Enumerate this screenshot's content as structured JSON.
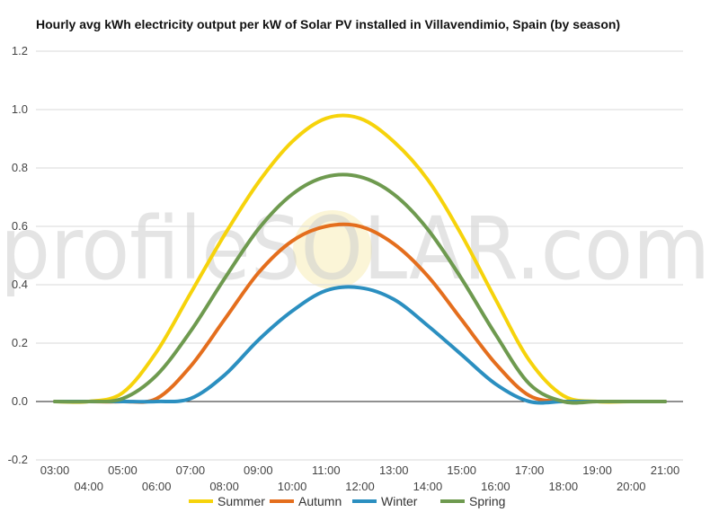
{
  "chart_data": {
    "type": "line",
    "title": "Hourly avg kWh electricity output per kW of Solar PV installed in Villavendimio, Spain (by season)",
    "xlabel": "",
    "ylabel": "",
    "x": [
      "03:00",
      "04:00",
      "05:00",
      "06:00",
      "07:00",
      "08:00",
      "09:00",
      "10:00",
      "11:00",
      "12:00",
      "13:00",
      "14:00",
      "15:00",
      "16:00",
      "17:00",
      "18:00",
      "19:00",
      "20:00",
      "21:00"
    ],
    "ylim": [
      -0.2,
      1.2
    ],
    "yticks": [
      "1.2",
      "1.0",
      "0.8",
      "0.6",
      "0.4",
      "0.2",
      "0.0",
      "-0.2"
    ],
    "grid": true,
    "legend": "bottom",
    "watermark": "profileSOLAR.com",
    "series": [
      {
        "name": "Summer",
        "color": "#f6d30b",
        "values": [
          0.0,
          0.0,
          0.03,
          0.17,
          0.37,
          0.57,
          0.75,
          0.89,
          0.97,
          0.97,
          0.89,
          0.76,
          0.57,
          0.35,
          0.14,
          0.02,
          0.0,
          0.0,
          0.0
        ]
      },
      {
        "name": "Autumn",
        "color": "#e46e1d",
        "values": [
          0.0,
          0.0,
          0.0,
          0.01,
          0.12,
          0.28,
          0.44,
          0.55,
          0.6,
          0.6,
          0.54,
          0.43,
          0.28,
          0.13,
          0.02,
          0.0,
          0.0,
          0.0,
          0.0
        ]
      },
      {
        "name": "Winter",
        "color": "#2b8fc0",
        "values": [
          0.0,
          0.0,
          0.0,
          0.0,
          0.01,
          0.09,
          0.21,
          0.31,
          0.38,
          0.39,
          0.35,
          0.26,
          0.16,
          0.06,
          0.0,
          0.0,
          0.0,
          0.0,
          0.0
        ]
      },
      {
        "name": "Spring",
        "color": "#6e9a4f",
        "values": [
          0.0,
          0.0,
          0.01,
          0.09,
          0.24,
          0.42,
          0.59,
          0.71,
          0.77,
          0.77,
          0.71,
          0.59,
          0.42,
          0.23,
          0.06,
          0.0,
          0.0,
          0.0,
          0.0
        ]
      }
    ]
  }
}
